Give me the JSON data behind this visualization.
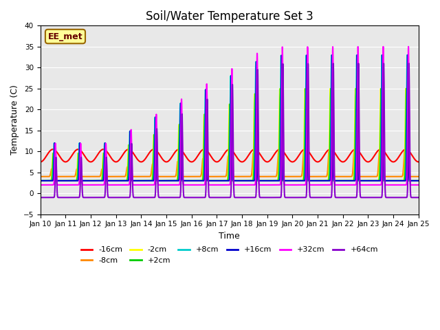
{
  "title": "Soil/Water Temperature Set 3",
  "xlabel": "Time",
  "ylabel": "Temperature (C)",
  "ylim": [
    -5,
    40
  ],
  "yticks": [
    -5,
    0,
    5,
    10,
    15,
    20,
    25,
    30,
    35,
    40
  ],
  "x_start": 10,
  "x_end": 25,
  "x_ticks": [
    10,
    11,
    12,
    13,
    14,
    15,
    16,
    17,
    18,
    19,
    20,
    21,
    22,
    23,
    24,
    25
  ],
  "x_tick_labels": [
    "Jan 10",
    "Jan 11",
    "Jan 12",
    "Jan 13",
    "Jan 14",
    "Jan 15",
    "Jan 16",
    "Jan 17",
    "Jan 18",
    "Jan 19",
    "Jan 20",
    "Jan 21",
    "Jan 22",
    "Jan 23",
    "Jan 24",
    "Jan 25"
  ],
  "watermark": "EE_met",
  "watermark_bg": "#ffff99",
  "watermark_border": "#996600",
  "background_color": "#e8e8e8",
  "series": [
    {
      "label": "-16cm",
      "color": "#ff0000",
      "lw": 1.5
    },
    {
      "label": "-8cm",
      "color": "#ff8800",
      "lw": 1.5
    },
    {
      "label": "-2cm",
      "color": "#ffff00",
      "lw": 1.5
    },
    {
      "label": "+2cm",
      "color": "#00cc00",
      "lw": 1.5
    },
    {
      "label": "+8cm",
      "color": "#00cccc",
      "lw": 1.5
    },
    {
      "label": "+16cm",
      "color": "#0000cc",
      "lw": 1.5
    },
    {
      "label": "+32cm",
      "color": "#ff00ff",
      "lw": 1.5
    },
    {
      "label": "+64cm",
      "color": "#8800cc",
      "lw": 1.5
    }
  ],
  "grid_color": "#ffffff",
  "legend_ncol": 6,
  "legend_ncol2": 2
}
